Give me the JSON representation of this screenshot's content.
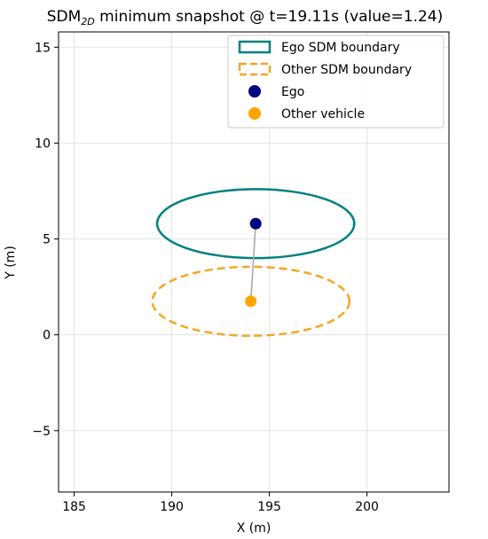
{
  "chart_data": {
    "type": "scatter",
    "title": {
      "prefix": "SDM",
      "subscript": "2D",
      "suffix": " minimum snapshot @ t=19.11s (value=1.24)"
    },
    "xlabel": "X (m)",
    "ylabel": "Y (m)",
    "xlim": [
      184.2,
      204.2
    ],
    "ylim": [
      -8.2,
      15.8
    ],
    "xticks": [
      185,
      190,
      195,
      200
    ],
    "yticks": [
      -5,
      0,
      5,
      10,
      15
    ],
    "xtick_labels": [
      "185",
      "190",
      "195",
      "200"
    ],
    "ytick_labels": [
      "−5",
      "0",
      "5",
      "10",
      "15"
    ],
    "grid": true,
    "legend_position": "top-right",
    "legend": [
      {
        "label": "Ego SDM boundary",
        "kind": "rect-solid",
        "color": "#008080"
      },
      {
        "label": "Other SDM boundary",
        "kind": "rect-dashed",
        "color": "#f5a623"
      },
      {
        "label": "Ego",
        "kind": "dot",
        "color": "#000080"
      },
      {
        "label": "Other vehicle",
        "kind": "dot",
        "color": "#ffa500"
      }
    ],
    "ego": {
      "x": 194.3,
      "y": 5.8,
      "color": "#000080"
    },
    "other": {
      "x": 194.05,
      "y": 1.75,
      "color": "#ffa500"
    },
    "ego_boundary": {
      "cx": 194.3,
      "cy": 5.8,
      "rx": 5.05,
      "ry": 1.8,
      "color": "#008080"
    },
    "other_boundary": {
      "cx": 194.05,
      "cy": 1.75,
      "rx": 5.05,
      "ry": 1.8,
      "color": "#f5a623"
    },
    "connector_color": "#aaaaaa"
  }
}
